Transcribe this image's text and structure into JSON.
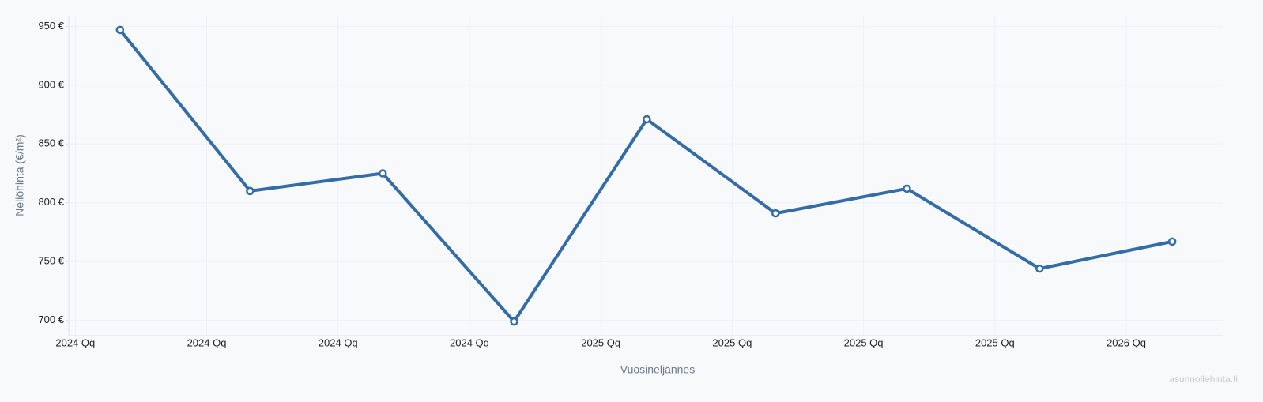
{
  "chart_data": {
    "type": "line",
    "x": [
      0.34,
      1.33,
      2.34,
      3.34,
      4.35,
      5.33,
      6.33,
      7.34,
      8.35
    ],
    "xlim": [
      -0.05,
      8.74
    ],
    "xticks": [
      {
        "value": 0,
        "label": "2024 Qq"
      },
      {
        "value": 1,
        "label": "2024 Qq"
      },
      {
        "value": 2,
        "label": "2024 Qq"
      },
      {
        "value": 3,
        "label": "2024 Qq"
      },
      {
        "value": 4,
        "label": "2025 Qq"
      },
      {
        "value": 5,
        "label": "2025 Qq"
      },
      {
        "value": 6,
        "label": "2025 Qq"
      },
      {
        "value": 7,
        "label": "2025 Qq"
      },
      {
        "value": 8,
        "label": "2026 Qq"
      }
    ],
    "series": [
      {
        "color": "#336ca6",
        "values": [
          947,
          810,
          825,
          699,
          871,
          791,
          812,
          744,
          767
        ]
      }
    ],
    "ylim": [
      687,
      959
    ],
    "yticks": [
      {
        "value": 700,
        "label": "700 €"
      },
      {
        "value": 750,
        "label": "750 €"
      },
      {
        "value": 800,
        "label": "800 €"
      },
      {
        "value": 850,
        "label": "850 €"
      },
      {
        "value": 900,
        "label": "900 €"
      },
      {
        "value": 950,
        "label": "950 €"
      }
    ],
    "y_label": "Neliöhinta (€/m²)",
    "x_label": "Vuosineljännes",
    "watermark": "asunnollehinta.fi",
    "grid": true
  }
}
